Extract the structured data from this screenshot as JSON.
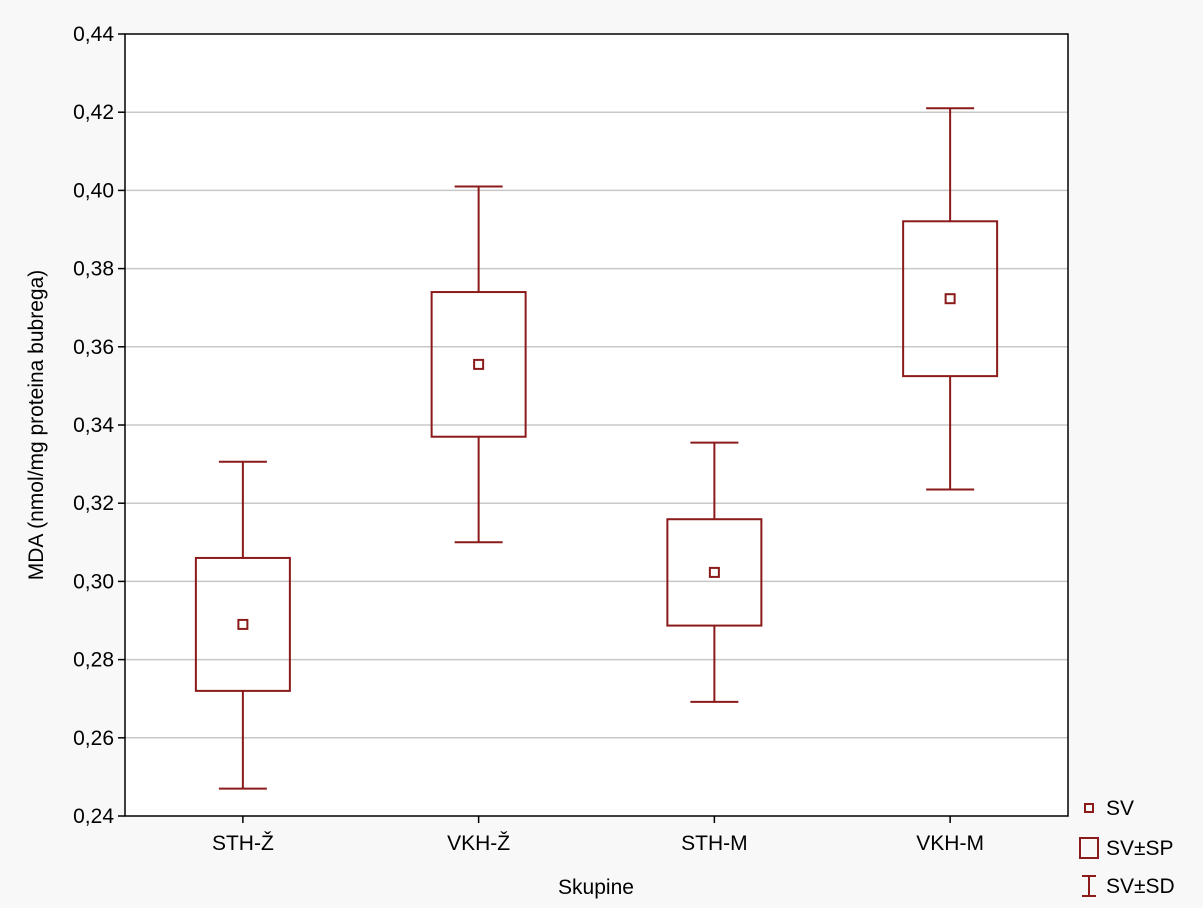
{
  "chart_data": {
    "type": "box",
    "title": "",
    "xlabel": "Skupine",
    "ylabel": "MDA (nmol/mg proteina bubrega)",
    "ylim": [
      0.24,
      0.44
    ],
    "yticks": [
      0.24,
      0.26,
      0.28,
      0.3,
      0.32,
      0.34,
      0.36,
      0.38,
      0.4,
      0.42,
      0.44
    ],
    "ytick_labels": [
      "0,24",
      "0,26",
      "0,28",
      "0,30",
      "0,32",
      "0,34",
      "0,36",
      "0,38",
      "0,40",
      "0,42",
      "0,44"
    ],
    "grid": "horizontal",
    "categories": [
      "STH-Ž",
      "VKH-Ž",
      "STH-M",
      "VKH-M"
    ],
    "mean": [
      0.289,
      0.3555,
      0.3023,
      0.3723
    ],
    "box_low": [
      0.272,
      0.337,
      0.2887,
      0.3525
    ],
    "box_high": [
      0.306,
      0.374,
      0.3159,
      0.3921
    ],
    "whisker_low": [
      0.247,
      0.31,
      0.2692,
      0.3235
    ],
    "whisker_high": [
      0.3306,
      0.401,
      0.3355,
      0.421
    ],
    "legend": {
      "placement": "bottom-right",
      "items": [
        {
          "symbol": "point",
          "label": "SV"
        },
        {
          "symbol": "box",
          "label": "SV±SP"
        },
        {
          "symbol": "whisker",
          "label": "SV±SD"
        }
      ]
    },
    "colors": {
      "series": "#8b1a1a",
      "grid": "#c8c8c8",
      "background": "#ffffff",
      "outer_background": "#f8f8f8"
    }
  }
}
